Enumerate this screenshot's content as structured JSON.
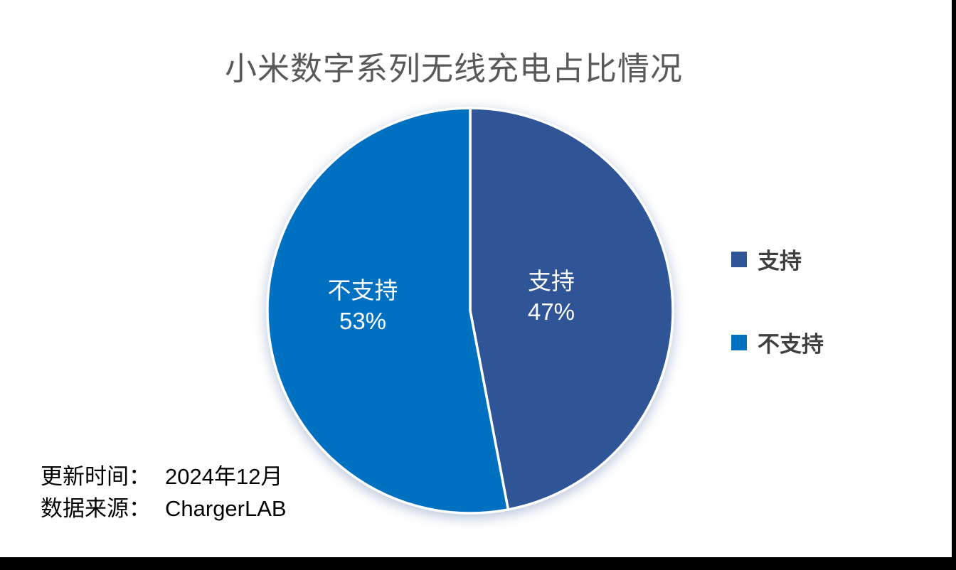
{
  "page": {
    "letterbox_color": "#000000",
    "slide_background": "#ffffff"
  },
  "chart_data": {
    "type": "pie",
    "title": "小米数字系列无线充电占比情况",
    "title_color": "#595959",
    "start_angle_deg": 0,
    "direction": "clockwise",
    "stroke_color": "#ffffff",
    "legend_position": "right",
    "slices": [
      {
        "label": "支持",
        "value": 47,
        "percent_label": "47%",
        "color": "#2F5597"
      },
      {
        "label": "不支持",
        "value": 53,
        "percent_label": "53%",
        "color": "#0070C0"
      }
    ]
  },
  "footer": {
    "update_time_label": "更新时间：",
    "update_time_value": "2024年12月",
    "source_label": "数据来源：",
    "source_value": "ChargerLAB"
  }
}
